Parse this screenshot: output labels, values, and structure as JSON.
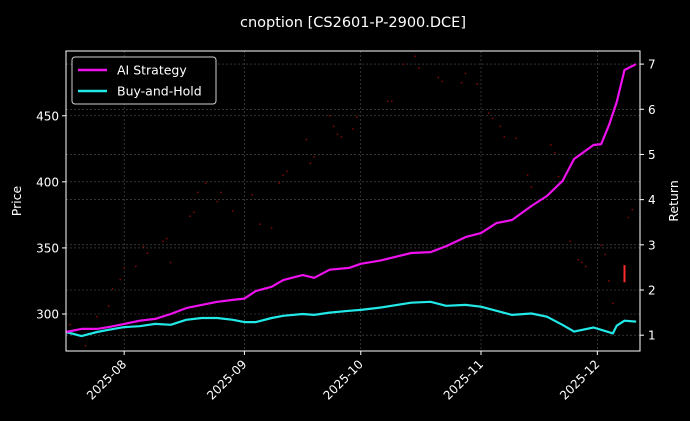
{
  "chart_data": {
    "type": "line",
    "title": "cnoption [CS2601-P-2900.DCE]",
    "ylabel": "Price",
    "y2label": "Return",
    "xlim": [
      "2025-07-17",
      "2025-12-12"
    ],
    "ylim": [
      272,
      499
    ],
    "y2lim": [
      0.65,
      7.29
    ],
    "x_ticks": [
      "2025-08",
      "2025-09",
      "2025-10",
      "2025-11",
      "2025-12"
    ],
    "x_tick_dates": [
      "2025-08-01",
      "2025-09-01",
      "2025-10-01",
      "2025-11-01",
      "2025-12-01"
    ],
    "y_ticks": [
      300,
      350,
      400,
      450
    ],
    "y2_ticks": [
      1,
      2,
      3,
      4,
      5,
      6,
      7
    ],
    "grid": true,
    "legend_placement": "top-left",
    "colors": {
      "ai": "#ee11ee",
      "bh": "#22e8e8",
      "price": "#7a0a0a",
      "bar": "#ff2a2a",
      "background": "#000000"
    },
    "series": [
      {
        "name": "AI Strategy",
        "axis": "right",
        "x": [
          "2025-07-17",
          "2025-07-21",
          "2025-07-25",
          "2025-07-28",
          "2025-08-01",
          "2025-08-05",
          "2025-08-09",
          "2025-08-13",
          "2025-08-17",
          "2025-08-21",
          "2025-08-25",
          "2025-08-29",
          "2025-09-01",
          "2025-09-04",
          "2025-09-08",
          "2025-09-11",
          "2025-09-16",
          "2025-09-19",
          "2025-09-23",
          "2025-09-28",
          "2025-10-01",
          "2025-10-06",
          "2025-10-14",
          "2025-10-19",
          "2025-10-23",
          "2025-10-28",
          "2025-11-01",
          "2025-11-05",
          "2025-11-09",
          "2025-11-14",
          "2025-11-18",
          "2025-11-22",
          "2025-11-25",
          "2025-11-30",
          "2025-12-02",
          "2025-12-04",
          "2025-12-06",
          "2025-12-08",
          "2025-12-11"
        ],
        "values": [
          1.07,
          1.14,
          1.14,
          1.18,
          1.25,
          1.32,
          1.36,
          1.47,
          1.6,
          1.67,
          1.74,
          1.78,
          1.81,
          1.98,
          2.07,
          2.22,
          2.33,
          2.27,
          2.45,
          2.49,
          2.58,
          2.65,
          2.82,
          2.84,
          2.97,
          3.17,
          3.26,
          3.48,
          3.55,
          3.86,
          4.08,
          4.41,
          4.9,
          5.21,
          5.23,
          5.65,
          6.16,
          6.87,
          7.0
        ]
      },
      {
        "name": "Buy-and-Hold",
        "axis": "right",
        "x": [
          "2025-07-17",
          "2025-07-21",
          "2025-07-25",
          "2025-07-28",
          "2025-08-01",
          "2025-08-05",
          "2025-08-09",
          "2025-08-13",
          "2025-08-17",
          "2025-08-21",
          "2025-08-25",
          "2025-08-29",
          "2025-09-01",
          "2025-09-04",
          "2025-09-08",
          "2025-09-11",
          "2025-09-16",
          "2025-09-19",
          "2025-09-23",
          "2025-09-28",
          "2025-10-01",
          "2025-10-06",
          "2025-10-14",
          "2025-10-19",
          "2025-10-23",
          "2025-10-28",
          "2025-11-01",
          "2025-11-05",
          "2025-11-09",
          "2025-11-14",
          "2025-11-18",
          "2025-11-22",
          "2025-11-25",
          "2025-11-30",
          "2025-12-02",
          "2025-12-05",
          "2025-12-06",
          "2025-12-08",
          "2025-12-11"
        ],
        "values": [
          1.07,
          0.98,
          1.07,
          1.12,
          1.18,
          1.2,
          1.25,
          1.23,
          1.34,
          1.38,
          1.38,
          1.34,
          1.29,
          1.29,
          1.38,
          1.43,
          1.47,
          1.45,
          1.5,
          1.54,
          1.56,
          1.61,
          1.72,
          1.74,
          1.65,
          1.67,
          1.63,
          1.54,
          1.45,
          1.48,
          1.41,
          1.23,
          1.08,
          1.17,
          1.12,
          1.04,
          1.21,
          1.32,
          1.3
        ]
      },
      {
        "axis": "left",
        "kind": "scatter",
        "x": [
          "2025-07-18",
          "2025-07-22",
          "2025-07-25",
          "2025-07-28",
          "2025-07-29",
          "2025-07-31",
          "2025-08-01",
          "2025-08-04",
          "2025-08-06",
          "2025-08-07",
          "2025-08-11",
          "2025-08-12",
          "2025-08-13",
          "2025-08-18",
          "2025-08-19",
          "2025-08-20",
          "2025-08-22",
          "2025-08-25",
          "2025-08-26",
          "2025-08-29",
          "2025-09-03",
          "2025-09-05",
          "2025-09-08",
          "2025-09-10",
          "2025-09-11",
          "2025-09-12",
          "2025-09-17",
          "2025-09-18",
          "2025-09-19",
          "2025-09-23",
          "2025-09-24",
          "2025-09-25",
          "2025-09-26",
          "2025-09-29",
          "2025-09-30",
          "2025-10-08",
          "2025-10-09",
          "2025-10-12",
          "2025-10-15",
          "2025-10-16",
          "2025-10-21",
          "2025-10-22",
          "2025-10-27",
          "2025-10-28",
          "2025-10-31",
          "2025-11-03",
          "2025-11-04",
          "2025-11-06",
          "2025-11-07",
          "2025-11-10",
          "2025-11-13",
          "2025-11-14",
          "2025-11-19",
          "2025-11-20",
          "2025-11-21",
          "2025-11-24",
          "2025-11-26",
          "2025-11-27",
          "2025-11-28",
          "2025-12-02",
          "2025-12-03",
          "2025-12-04",
          "2025-12-05",
          "2025-12-09",
          "2025-12-10",
          "2025-12-12"
        ],
        "values": [
          292,
          276,
          298,
          306,
          319,
          326,
          335,
          336,
          351,
          346,
          355,
          357,
          339,
          374,
          377,
          392,
          399,
          385,
          392,
          378,
          390,
          368,
          365,
          399,
          405,
          408,
          432,
          414,
          419,
          450,
          442,
          436,
          434,
          440,
          449,
          461,
          461,
          489,
          495,
          486,
          479,
          476,
          475,
          482,
          474,
          452,
          448,
          442,
          434,
          433,
          405,
          396,
          428,
          422,
          404,
          355,
          341,
          339,
          336,
          352,
          345,
          325,
          308,
          373,
          379,
          373
        ]
      },
      {
        "axis": "left",
        "kind": "range-bar",
        "x": "2025-12-08",
        "low": 324,
        "high": 337
      }
    ]
  }
}
